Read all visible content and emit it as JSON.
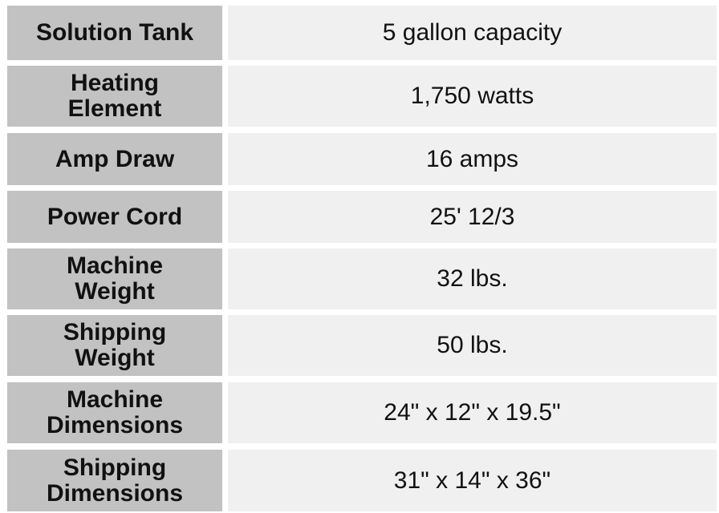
{
  "colors": {
    "label_bg": "#c2c2c2",
    "value_bg": "#f0f0f0"
  },
  "rows": [
    {
      "label": "Solution Tank",
      "value": "5 gallon capacity"
    },
    {
      "label": "Heating Element",
      "value": "1,750 watts"
    },
    {
      "label": "Amp Draw",
      "value": "16 amps"
    },
    {
      "label": "Power Cord",
      "value": "25' 12/3"
    },
    {
      "label": "Machine Weight",
      "value": "32 lbs."
    },
    {
      "label": "Shipping Weight",
      "value": "50 lbs."
    },
    {
      "label": "Machine Dimensions",
      "value": "24\" x 12\" x 19.5\""
    },
    {
      "label": "Shipping Dimensions",
      "value": "31\" x 14\" x 36\""
    }
  ]
}
